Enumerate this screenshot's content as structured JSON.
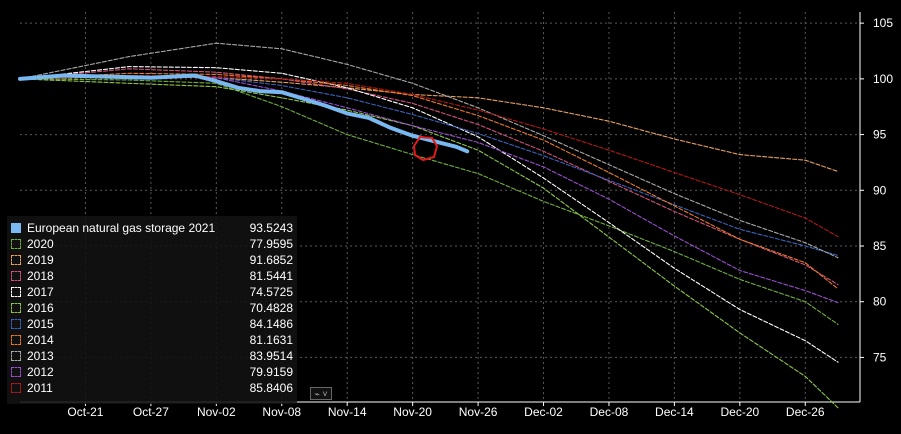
{
  "chart_data": {
    "type": "line",
    "title": "",
    "xlabel": "",
    "ylabel": "",
    "ylim": [
      71,
      106
    ],
    "y_ticks": [
      75,
      80,
      85,
      90,
      95,
      100,
      105
    ],
    "x_domain_days": [
      0,
      75
    ],
    "x_ticks": [
      {
        "label": "Oct-21",
        "day": 6
      },
      {
        "label": "Oct-27",
        "day": 12
      },
      {
        "label": "Nov-02",
        "day": 18
      },
      {
        "label": "Nov-08",
        "day": 24
      },
      {
        "label": "Nov-14",
        "day": 30
      },
      {
        "label": "Nov-20",
        "day": 36
      },
      {
        "label": "Nov-26",
        "day": 42
      },
      {
        "label": "Dec-02",
        "day": 48
      },
      {
        "label": "Dec-08",
        "day": 54
      },
      {
        "label": "Dec-14",
        "day": 60
      },
      {
        "label": "Dec-20",
        "day": 66
      },
      {
        "label": "Dec-26",
        "day": 72
      }
    ],
    "grid": true,
    "y_axis_position": "right",
    "legend_position": "bottom-left",
    "series": [
      {
        "name": "European natural gas storage 2021",
        "value_label": "93.5243",
        "color": "#79b8f0",
        "style": "solid",
        "points": [
          [
            0,
            100
          ],
          [
            4,
            100.3
          ],
          [
            8,
            100.2
          ],
          [
            12,
            100.1
          ],
          [
            16,
            100.3
          ],
          [
            18,
            99.8
          ],
          [
            20,
            99.2
          ],
          [
            22,
            98.9
          ],
          [
            24,
            98.8
          ],
          [
            26,
            98.2
          ],
          [
            28,
            97.6
          ],
          [
            30,
            96.9
          ],
          [
            32,
            96.5
          ],
          [
            34,
            95.6
          ],
          [
            36,
            94.9
          ],
          [
            38,
            94.4
          ],
          [
            40,
            93.9
          ],
          [
            41,
            93.5
          ]
        ]
      },
      {
        "name": "2020",
        "value_label": "77.9595",
        "color": "#6fae3e",
        "style": "dashed",
        "points": [
          [
            0,
            100
          ],
          [
            10,
            99.9
          ],
          [
            18,
            99.6
          ],
          [
            24,
            97.5
          ],
          [
            30,
            95
          ],
          [
            36,
            93.2
          ],
          [
            42,
            91.5
          ],
          [
            48,
            89
          ],
          [
            54,
            86.8
          ],
          [
            60,
            84.5
          ],
          [
            66,
            82
          ],
          [
            72,
            80
          ],
          [
            75,
            77.96
          ]
        ]
      },
      {
        "name": "2019",
        "value_label": "91.6852",
        "color": "#e8a060",
        "style": "dashed",
        "points": [
          [
            0,
            100
          ],
          [
            10,
            100.2
          ],
          [
            18,
            100.1
          ],
          [
            24,
            99.7
          ],
          [
            30,
            99.2
          ],
          [
            36,
            98.6
          ],
          [
            42,
            98.3
          ],
          [
            48,
            97.4
          ],
          [
            54,
            96.2
          ],
          [
            60,
            94.6
          ],
          [
            66,
            93.2
          ],
          [
            72,
            92.7
          ],
          [
            75,
            91.69
          ]
        ]
      },
      {
        "name": "2018",
        "value_label": "81.5441",
        "color": "#d0507c",
        "style": "dashed",
        "points": [
          [
            0,
            100
          ],
          [
            10,
            100.9
          ],
          [
            18,
            100.6
          ],
          [
            24,
            100
          ],
          [
            30,
            99.1
          ],
          [
            36,
            97.8
          ],
          [
            42,
            95.9
          ],
          [
            48,
            93.5
          ],
          [
            54,
            90.8
          ],
          [
            60,
            88.1
          ],
          [
            66,
            85.6
          ],
          [
            72,
            83.3
          ],
          [
            75,
            81.54
          ]
        ]
      },
      {
        "name": "2017",
        "value_label": "74.5725",
        "color": "#ffffff",
        "style": "dashed",
        "points": [
          [
            0,
            100
          ],
          [
            10,
            101.1
          ],
          [
            18,
            101
          ],
          [
            24,
            100.5
          ],
          [
            30,
            99.2
          ],
          [
            36,
            97.4
          ],
          [
            42,
            94.8
          ],
          [
            48,
            91.1
          ],
          [
            54,
            87.1
          ],
          [
            60,
            83
          ],
          [
            66,
            79.3
          ],
          [
            72,
            76.5
          ],
          [
            75,
            74.57
          ]
        ]
      },
      {
        "name": "2016",
        "value_label": "70.4828",
        "color": "#8dc64a",
        "style": "dashed",
        "points": [
          [
            0,
            100
          ],
          [
            10,
            99.6
          ],
          [
            18,
            99.3
          ],
          [
            24,
            98.3
          ],
          [
            30,
            97.2
          ],
          [
            36,
            95.8
          ],
          [
            42,
            93.6
          ],
          [
            48,
            90.2
          ],
          [
            54,
            85.8
          ],
          [
            60,
            81.4
          ],
          [
            66,
            77.2
          ],
          [
            72,
            73.3
          ],
          [
            75,
            70.48
          ]
        ]
      },
      {
        "name": "2015",
        "value_label": "84.1486",
        "color": "#3a62b8",
        "style": "dashed",
        "points": [
          [
            0,
            100
          ],
          [
            10,
            100.3
          ],
          [
            18,
            100.1
          ],
          [
            24,
            99.4
          ],
          [
            30,
            98.3
          ],
          [
            36,
            96.8
          ],
          [
            42,
            95.1
          ],
          [
            48,
            93.1
          ],
          [
            54,
            90.9
          ],
          [
            60,
            88.7
          ],
          [
            66,
            86.5
          ],
          [
            72,
            85
          ],
          [
            75,
            84.15
          ]
        ]
      },
      {
        "name": "2014",
        "value_label": "81.1631",
        "color": "#e87a2a",
        "style": "dashed",
        "points": [
          [
            0,
            100
          ],
          [
            10,
            100.5
          ],
          [
            18,
            100.4
          ],
          [
            24,
            100
          ],
          [
            30,
            99.4
          ],
          [
            36,
            98.5
          ],
          [
            42,
            96.7
          ],
          [
            48,
            94.5
          ],
          [
            54,
            91.6
          ],
          [
            60,
            88.6
          ],
          [
            66,
            85.6
          ],
          [
            72,
            83.5
          ],
          [
            75,
            81.16
          ]
        ]
      },
      {
        "name": "2013",
        "value_label": "83.9514",
        "color": "#a8a8a8",
        "style": "dashed",
        "points": [
          [
            0,
            100
          ],
          [
            10,
            102
          ],
          [
            18,
            103.2
          ],
          [
            24,
            102.7
          ],
          [
            30,
            101.3
          ],
          [
            36,
            99.6
          ],
          [
            42,
            97.4
          ],
          [
            48,
            94.9
          ],
          [
            54,
            92.3
          ],
          [
            60,
            89.7
          ],
          [
            66,
            87.3
          ],
          [
            72,
            85.3
          ],
          [
            75,
            83.95
          ]
        ]
      },
      {
        "name": "2012",
        "value_label": "79.9159",
        "color": "#9a4ed0",
        "style": "dashed",
        "points": [
          [
            0,
            100
          ],
          [
            10,
            100.3
          ],
          [
            18,
            100.1
          ],
          [
            24,
            98.9
          ],
          [
            30,
            97.4
          ],
          [
            36,
            95.8
          ],
          [
            42,
            94.3
          ],
          [
            48,
            92.1
          ],
          [
            54,
            89.2
          ],
          [
            60,
            85.9
          ],
          [
            66,
            82.8
          ],
          [
            72,
            81
          ],
          [
            75,
            79.92
          ]
        ]
      },
      {
        "name": "2011",
        "value_label": "85.8406",
        "color": "#b01818",
        "style": "dashed",
        "points": [
          [
            0,
            100
          ],
          [
            10,
            100.3
          ],
          [
            18,
            100.2
          ],
          [
            24,
            100
          ],
          [
            30,
            99.6
          ],
          [
            36,
            98.6
          ],
          [
            42,
            97.2
          ],
          [
            48,
            95.5
          ],
          [
            54,
            93.6
          ],
          [
            60,
            91.6
          ],
          [
            66,
            89.6
          ],
          [
            72,
            87.5
          ],
          [
            75,
            85.84
          ]
        ]
      }
    ]
  },
  "toolbar": {
    "icon": "chart-type-icon",
    "symbol": "⌁ ˅"
  }
}
